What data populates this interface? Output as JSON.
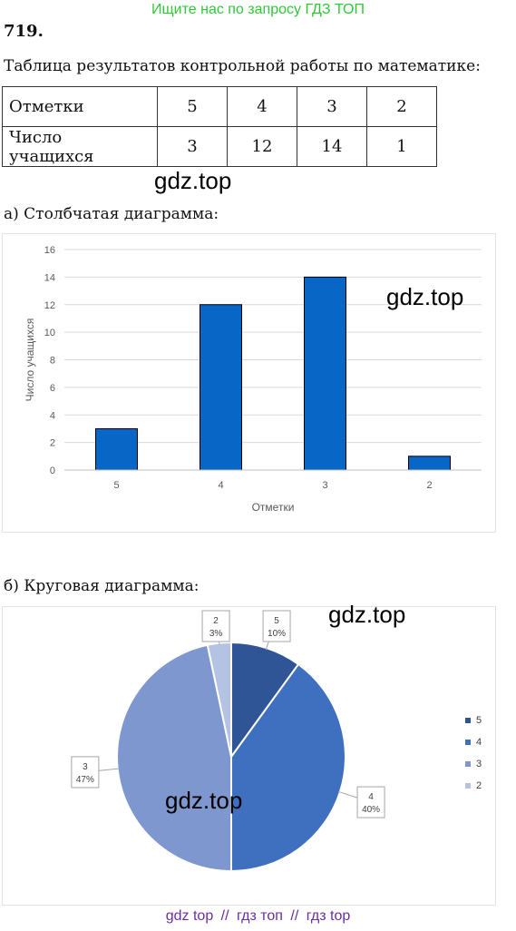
{
  "banner": "Ищите нас по запросу ГДЗ ТОП",
  "problem": {
    "number": "719",
    "suffix": "."
  },
  "table_caption": "Таблица результатов контрольной работы по математике:",
  "table": {
    "rows": [
      {
        "header": "Отметки",
        "cells": [
          "5",
          "4",
          "3",
          "2"
        ]
      },
      {
        "header": "Число учащихся",
        "cells": [
          "3",
          "12",
          "14",
          "1"
        ]
      }
    ]
  },
  "bar_caption": "а) Столбчатая диаграмма:",
  "pie_caption": "б) Круговая диаграмма:",
  "watermark": "gdz.top",
  "chart_data": [
    {
      "type": "bar",
      "categories": [
        "5",
        "4",
        "3",
        "2"
      ],
      "values": [
        3,
        12,
        14,
        1
      ],
      "xlabel": "Отметки",
      "ylabel": "Число учащихся",
      "ylim": [
        0,
        16
      ],
      "yticks": [
        0,
        2,
        4,
        6,
        8,
        10,
        12,
        14,
        16
      ],
      "grid": true,
      "color": "#0766c6"
    },
    {
      "type": "pie",
      "labels": [
        "5",
        "4",
        "3",
        "2"
      ],
      "values": [
        3,
        12,
        14,
        1
      ],
      "percent_labels": [
        "10%",
        "40%",
        "47%",
        "3%"
      ],
      "colors": [
        "#2f5597",
        "#3f6fbf",
        "#7f97cf",
        "#b4c3e3"
      ],
      "legend": "right"
    }
  ],
  "footer": {
    "links": [
      "gdz top",
      "гдз топ",
      "гдз top"
    ],
    "separator": "//"
  }
}
